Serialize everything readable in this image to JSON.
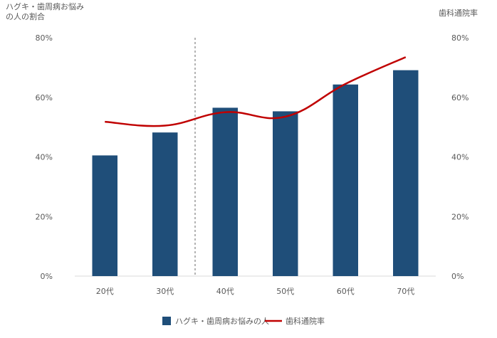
{
  "chart_data": {
    "type": "bar",
    "categories": [
      "20代",
      "30代",
      "40代",
      "50代",
      "60代",
      "70代"
    ],
    "series": [
      {
        "name": "ハグキ・歯周病お悩みの人",
        "type": "bar",
        "axis": "left",
        "values": [
          40.5,
          48.2,
          56.5,
          55.3,
          64.3,
          69.1
        ],
        "color": "#1f4e79"
      },
      {
        "name": "歯科通院率",
        "type": "line",
        "axis": "right",
        "values": [
          51.8,
          50.5,
          55.0,
          53.5,
          64.5,
          73.5
        ],
        "color": "#c00000"
      }
    ],
    "ylabel_left": [
      "ハグキ・歯周病お悩み",
      "の人の割合"
    ],
    "ylabel_right": "歯科通院率",
    "ylim_left": [
      0,
      80
    ],
    "ylim_right": [
      0,
      80
    ],
    "yticks_left": [
      "0%",
      "20%",
      "40%",
      "60%",
      "80%"
    ],
    "yticks_right": [
      "0%",
      "20%",
      "40%",
      "60%",
      "80%"
    ],
    "divider_after_category": "30代",
    "grid": false,
    "legend_position": "bottom",
    "line_smooth": true
  }
}
